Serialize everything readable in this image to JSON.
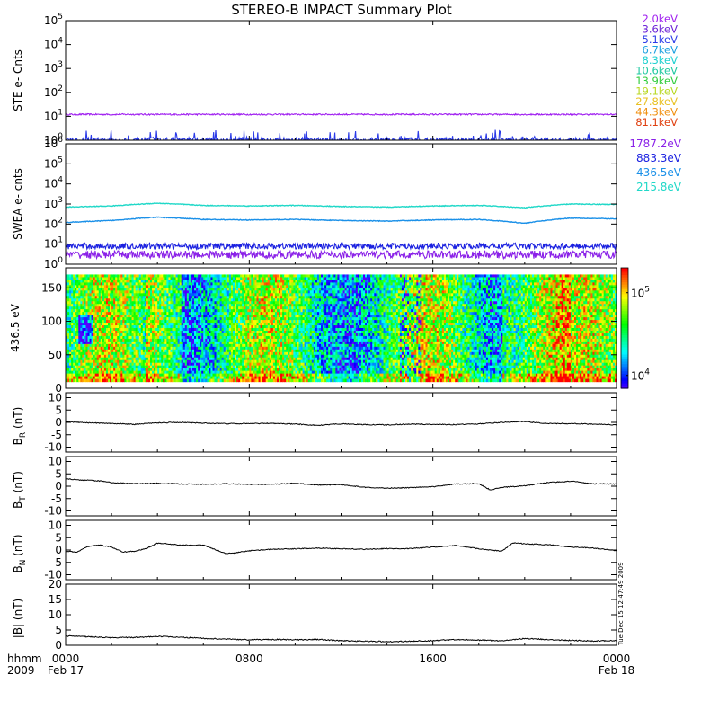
{
  "title": "STEREO-B IMPACT Summary Plot",
  "timestamp": "Tue Dec 15 12:47:49 2009",
  "time_axis": {
    "row1_label": "hhmm",
    "row2_label": "2009",
    "ticks": [
      {
        "hour": 0,
        "label": "0000",
        "date": "Feb 17"
      },
      {
        "hour": 8,
        "label": "0800",
        "date": ""
      },
      {
        "hour": 16,
        "label": "1600",
        "date": ""
      },
      {
        "hour": 24,
        "label": "0000",
        "date": "Feb 18"
      }
    ],
    "range_hours": [
      0,
      24
    ]
  },
  "legend": {
    "ste": [
      {
        "label": "2.0keV",
        "color": "#a020f0"
      },
      {
        "label": "3.6keV",
        "color": "#6a1fd6"
      },
      {
        "label": "5.1keV",
        "color": "#2a3ae8"
      },
      {
        "label": "6.7keV",
        "color": "#1aa0e0"
      },
      {
        "label": "8.3keV",
        "color": "#1ed0d0"
      },
      {
        "label": "10.6keV",
        "color": "#1ec8a0"
      },
      {
        "label": "13.9keV",
        "color": "#2ecc3a"
      },
      {
        "label": "19.1keV",
        "color": "#b8d820"
      },
      {
        "label": "27.8keV",
        "color": "#e8c020"
      },
      {
        "label": "44.3keV",
        "color": "#f09010"
      },
      {
        "label": "81.1keV",
        "color": "#e04010"
      }
    ],
    "swea": [
      {
        "label": "1787.2eV",
        "color": "#8a20e8"
      },
      {
        "label": "883.3eV",
        "color": "#1a20e0"
      },
      {
        "label": "436.5eV",
        "color": "#1a90e8"
      },
      {
        "label": "215.8eV",
        "color": "#20d8c8"
      }
    ]
  },
  "chart_data": [
    {
      "type": "line",
      "name": "ste",
      "ylabel": "STE e- Cnts",
      "scale": "log",
      "ylim": [
        1,
        100000
      ],
      "yticks": [
        {
          "value": 1,
          "base": "10",
          "exp": "0"
        },
        {
          "value": 10,
          "base": "10",
          "exp": "1"
        },
        {
          "value": 100,
          "base": "10",
          "exp": "2"
        },
        {
          "value": 1000,
          "base": "10",
          "exp": "3"
        },
        {
          "value": 10000,
          "base": "10",
          "exp": "4"
        },
        {
          "value": 100000,
          "base": "10",
          "exp": "5"
        }
      ],
      "series": [
        {
          "color": "#a020f0",
          "level": 12,
          "noise": 0.07
        },
        {
          "color": "#2a3ae8",
          "level": 1.0,
          "noise": 0.25,
          "spiky": true
        }
      ]
    },
    {
      "type": "line",
      "name": "swea",
      "ylabel": "SWEA e- cnts",
      "scale": "log",
      "ylim": [
        1,
        1000000
      ],
      "yticks": [
        {
          "value": 1,
          "base": "10",
          "exp": "0"
        },
        {
          "value": 10,
          "base": "10",
          "exp": "1"
        },
        {
          "value": 100,
          "base": "10",
          "exp": "2"
        },
        {
          "value": 1000,
          "base": "10",
          "exp": "3"
        },
        {
          "value": 10000,
          "base": "10",
          "exp": "4"
        },
        {
          "value": 100000,
          "base": "10",
          "exp": "5"
        },
        {
          "value": 1000000,
          "base": "10",
          "exp": "6"
        }
      ],
      "series": [
        {
          "color": "#20d8c8",
          "x": [
            0,
            2,
            4,
            6,
            8,
            10,
            12,
            14,
            16,
            18,
            20,
            22,
            24
          ],
          "y": [
            700,
            800,
            1100,
            850,
            800,
            850,
            750,
            700,
            800,
            850,
            650,
            1000,
            950
          ],
          "noise": 0.04
        },
        {
          "color": "#1a90e8",
          "x": [
            0,
            2,
            4,
            6,
            8,
            10,
            12,
            14,
            16,
            18,
            20,
            22,
            24
          ],
          "y": [
            120,
            150,
            220,
            170,
            160,
            170,
            150,
            140,
            160,
            170,
            110,
            200,
            180
          ],
          "noise": 0.04
        },
        {
          "color": "#1a20e0",
          "level": 8,
          "noise": 0.35
        },
        {
          "color": "#8a20e8",
          "level": 3,
          "noise": 0.45
        }
      ]
    },
    {
      "type": "heatmap",
      "name": "pitch",
      "ylabel": "436.5 eV",
      "ylim": [
        0,
        180
      ],
      "data_yrange": [
        10,
        170
      ],
      "yticks": [
        0,
        50,
        100,
        150
      ],
      "colorbar": {
        "range": [
          7000,
          200000
        ],
        "ticks": [
          {
            "value": 10000,
            "base": "10",
            "exp": "4"
          },
          {
            "value": 100000,
            "base": "10",
            "exp": "5"
          }
        ]
      }
    },
    {
      "type": "line",
      "name": "br",
      "ylabel_main": "B",
      "ylabel_sub": "R",
      "ylabel_unit": "(nT)",
      "ylim": [
        -12,
        12
      ],
      "yticks": [
        -10,
        -5,
        0,
        5,
        10
      ],
      "x": [
        0,
        1,
        2,
        3,
        4,
        5,
        6,
        7,
        8,
        9,
        10,
        11,
        12,
        13,
        14,
        15,
        16,
        17,
        18,
        19,
        20,
        21,
        22,
        23,
        24
      ],
      "y": [
        0.3,
        -0.2,
        -0.4,
        -0.8,
        -0.2,
        0.0,
        -0.3,
        -0.5,
        -0.5,
        -0.4,
        -0.7,
        -1.2,
        -0.6,
        -0.9,
        -1.0,
        -0.7,
        -0.8,
        -0.9,
        -0.6,
        0.0,
        0.3,
        -0.5,
        -0.5,
        -0.7,
        -1.0
      ],
      "color": "#000000"
    },
    {
      "type": "line",
      "name": "bt",
      "ylabel_main": "B",
      "ylabel_sub": "T",
      "ylabel_unit": "(nT)",
      "ylim": [
        -12,
        12
      ],
      "yticks": [
        -10,
        -5,
        0,
        5,
        10
      ],
      "x": [
        0,
        0.5,
        1,
        1.5,
        2,
        3,
        4,
        5,
        6,
        7,
        8,
        9,
        10,
        11,
        12,
        13,
        14,
        15,
        16,
        17,
        18,
        18.5,
        19,
        20,
        21,
        22,
        23,
        24
      ],
      "y": [
        3.0,
        2.6,
        2.4,
        2.1,
        1.5,
        1.0,
        1.2,
        0.9,
        0.8,
        1.0,
        0.7,
        0.8,
        1.2,
        0.5,
        0.6,
        -0.4,
        -0.8,
        -0.6,
        -0.2,
        0.9,
        1.0,
        -1.5,
        -0.5,
        0.2,
        1.5,
        2.0,
        1.0,
        0.9
      ],
      "color": "#000000"
    },
    {
      "type": "line",
      "name": "bn",
      "ylabel_main": "B",
      "ylabel_sub": "N",
      "ylabel_unit": "(nT)",
      "ylim": [
        -12,
        12
      ],
      "yticks": [
        -10,
        -5,
        0,
        5,
        10
      ],
      "x": [
        0,
        0.5,
        1,
        1.5,
        2,
        2.5,
        3,
        3.5,
        4,
        4.5,
        5,
        6,
        7,
        7.5,
        8,
        9,
        10,
        11,
        12,
        13,
        14,
        15,
        16,
        17,
        18,
        19,
        19.5,
        20,
        21,
        22,
        23,
        24
      ],
      "y": [
        -0.5,
        -0.8,
        1.5,
        2.0,
        1.2,
        -0.8,
        -0.5,
        0.5,
        2.8,
        2.5,
        2.0,
        2.0,
        -1.5,
        -1.0,
        -0.3,
        0.3,
        0.5,
        0.8,
        0.5,
        0.3,
        0.6,
        0.6,
        1.2,
        1.8,
        0.5,
        -0.5,
        3.0,
        2.5,
        2.2,
        1.2,
        0.8,
        -0.3
      ],
      "color": "#000000"
    },
    {
      "type": "line",
      "name": "bmag",
      "ylabel_main": "|B|",
      "ylabel_unit": "(nT)",
      "ylim": [
        0,
        20
      ],
      "yticks": [
        0,
        5,
        10,
        15,
        20
      ],
      "x": [
        0,
        1,
        2,
        3,
        4,
        5,
        6,
        7,
        8,
        9,
        10,
        11,
        12,
        13,
        14,
        15,
        16,
        17,
        18,
        19,
        20,
        21,
        22,
        23,
        24
      ],
      "y": [
        3.0,
        2.8,
        2.5,
        2.6,
        2.9,
        2.6,
        2.3,
        2.0,
        1.8,
        1.9,
        1.8,
        1.9,
        1.5,
        1.3,
        1.2,
        1.3,
        1.5,
        1.9,
        1.7,
        1.5,
        2.2,
        1.9,
        1.6,
        1.4,
        1.6
      ],
      "color": "#000000"
    }
  ]
}
